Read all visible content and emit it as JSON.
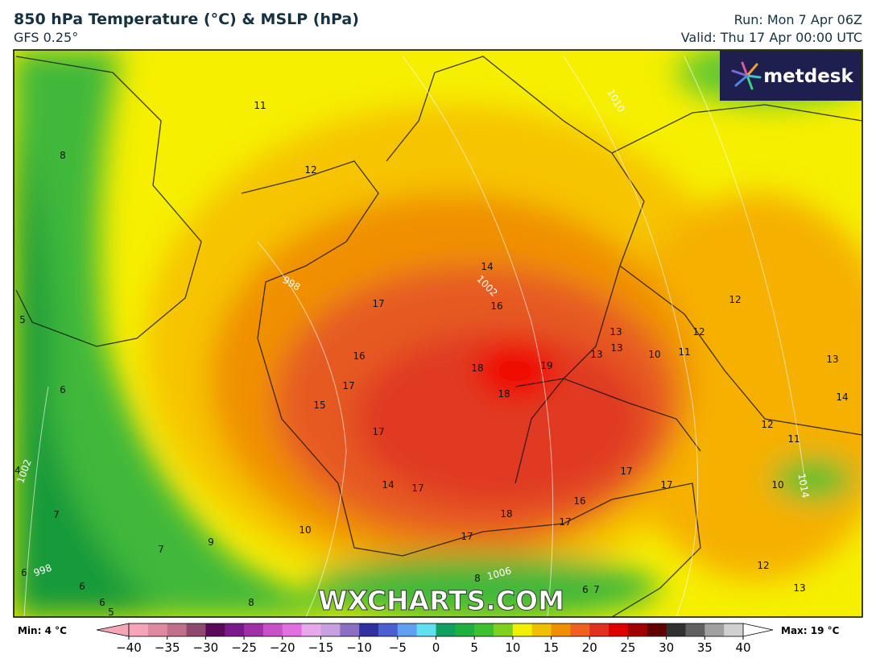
{
  "header": {
    "title": "850 hPa Temperature (°C) & MSLP (hPa)",
    "model": "GFS 0.25°",
    "run": "Run: Mon 7 Apr 06Z",
    "valid": "Valid: Thu 17 Apr 00:00 UTC"
  },
  "logo": "metdesk",
  "watermark": "WXCHARTS.COM",
  "temperature_labels": [
    11,
    8,
    12,
    14,
    17,
    16,
    12,
    13,
    12,
    13,
    13,
    10,
    11,
    16,
    18,
    19,
    13,
    17,
    18,
    14,
    5,
    6,
    15,
    17,
    12,
    11,
    17,
    17,
    14,
    17,
    10,
    16,
    18,
    17,
    7,
    17,
    10,
    9,
    7,
    12,
    6,
    6,
    6,
    8,
    8,
    6,
    7,
    13,
    4,
    5
  ],
  "pressure_labels": [
    1010,
    998,
    1002,
    1002,
    998,
    1006,
    1014
  ],
  "colorbar": {
    "min_label": "Min: 4 °C",
    "max_label": "Max: 19 °C",
    "lim": [
      -40,
      40
    ],
    "ticks": [
      {
        "value": -40,
        "label": "−40"
      },
      {
        "value": -35,
        "label": "−35"
      },
      {
        "value": -30,
        "label": "−30"
      },
      {
        "value": -25,
        "label": "−25"
      },
      {
        "value": -20,
        "label": "−20"
      },
      {
        "value": -15,
        "label": "−15"
      },
      {
        "value": -10,
        "label": "−10"
      },
      {
        "value": -5,
        "label": "−5"
      },
      0,
      5,
      10,
      15,
      20,
      25,
      30,
      35,
      40
    ],
    "colors": [
      "#f4a6b8",
      "#e08aa2",
      "#c0708a",
      "#8e4a6e",
      "#5a0a5a",
      "#7a1a8a",
      "#a030a8",
      "#c850c8",
      "#e070e0",
      "#e8a8ec",
      "#c8a0e0",
      "#8a70c0",
      "#3030a0",
      "#4a60d0",
      "#60a0f0",
      "#60e0f0",
      "#10a060",
      "#20b040",
      "#40c030",
      "#80d020",
      "#f0f000",
      "#f0c000",
      "#f09000",
      "#f06020",
      "#e03020",
      "#e00000",
      "#a00000",
      "#600000",
      "#303030",
      "#606060",
      "#a0a0a0",
      "#d0d0d0"
    ]
  }
}
